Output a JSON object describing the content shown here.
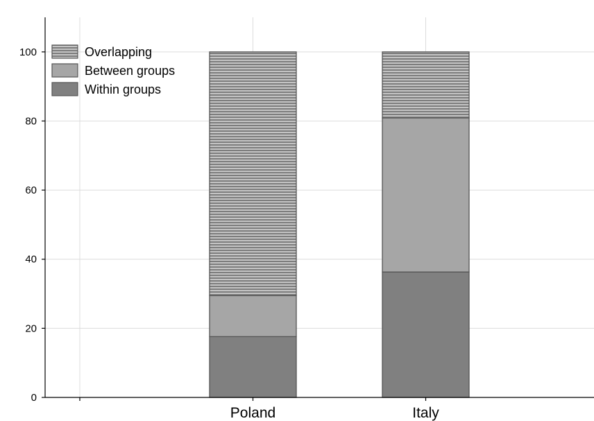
{
  "chart_data": {
    "type": "bar",
    "stacked": true,
    "categories": [
      "Poland",
      "Italy"
    ],
    "series": [
      {
        "name": "Within groups",
        "values": [
          17.6,
          36.3
        ],
        "color": "#808080",
        "pattern": "solid"
      },
      {
        "name": "Between groups",
        "values": [
          11.9,
          44.6
        ],
        "color": "#a6a6a6",
        "pattern": "solid"
      },
      {
        "name": "Overlapping",
        "values": [
          70.5,
          19.1
        ],
        "color": "#959595",
        "pattern": "horizontal-stripes"
      }
    ],
    "legend_order": [
      "Overlapping",
      "Between groups",
      "Within groups"
    ],
    "legend_position": "top-left",
    "ylim": [
      0,
      110
    ],
    "yticks": [
      0,
      20,
      40,
      60,
      80,
      100
    ],
    "xlabel": "",
    "ylabel": "",
    "title": "",
    "grid": true
  }
}
